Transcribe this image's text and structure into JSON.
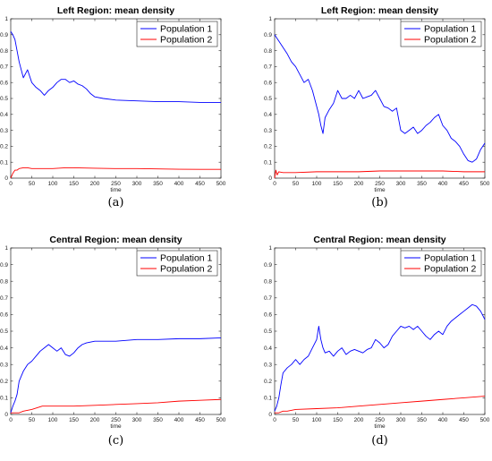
{
  "chart_data": [
    {
      "type": "line",
      "title": "Left Region: mean density",
      "xlabel": "time",
      "ylabel": "",
      "xlim": [
        0,
        500
      ],
      "ylim": [
        0,
        1
      ],
      "xticks": [
        "0",
        "50",
        "100",
        "150",
        "200",
        "250",
        "300",
        "350",
        "400",
        "450",
        "500"
      ],
      "yticks": [
        "0",
        "0.1",
        "0.2",
        "0.3",
        "0.4",
        "0.5",
        "0.6",
        "0.7",
        "0.8",
        "0.9",
        "1"
      ],
      "legend": "top-right",
      "caption": "(a)",
      "series": [
        {
          "name": "Population 1",
          "color": "#0000ff",
          "x": [
            0,
            5,
            10,
            15,
            20,
            25,
            30,
            40,
            50,
            60,
            70,
            80,
            90,
            100,
            110,
            120,
            130,
            140,
            150,
            160,
            170,
            180,
            190,
            200,
            220,
            250,
            300,
            350,
            400,
            450,
            500
          ],
          "y": [
            0.92,
            0.9,
            0.87,
            0.8,
            0.73,
            0.68,
            0.63,
            0.68,
            0.6,
            0.57,
            0.55,
            0.52,
            0.55,
            0.57,
            0.6,
            0.62,
            0.62,
            0.6,
            0.61,
            0.59,
            0.58,
            0.56,
            0.53,
            0.51,
            0.5,
            0.49,
            0.485,
            0.48,
            0.48,
            0.475,
            0.475
          ]
        },
        {
          "name": "Population 2",
          "color": "#ff0000",
          "x": [
            0,
            5,
            10,
            15,
            20,
            30,
            40,
            50,
            70,
            100,
            130,
            150,
            200,
            250,
            300,
            350,
            400,
            450,
            500
          ],
          "y": [
            0.0,
            0.03,
            0.05,
            0.05,
            0.06,
            0.065,
            0.065,
            0.06,
            0.06,
            0.06,
            0.065,
            0.065,
            0.062,
            0.06,
            0.06,
            0.058,
            0.056,
            0.055,
            0.055
          ]
        }
      ]
    },
    {
      "type": "line",
      "title": "Left Region: mean density",
      "xlabel": "time",
      "ylabel": "",
      "xlim": [
        0,
        500
      ],
      "ylim": [
        0,
        1
      ],
      "xticks": [
        "0",
        "50",
        "100",
        "150",
        "200",
        "250",
        "300",
        "350",
        "400",
        "450",
        "500"
      ],
      "yticks": [
        "0",
        "0.1",
        "0.2",
        "0.3",
        "0.4",
        "0.5",
        "0.6",
        "0.7",
        "0.8",
        "0.9",
        "1"
      ],
      "legend": "top-right",
      "caption": "(b)",
      "series": [
        {
          "name": "Population 1",
          "color": "#0000ff",
          "x": [
            0,
            5,
            10,
            20,
            30,
            40,
            50,
            60,
            70,
            80,
            90,
            95,
            100,
            105,
            110,
            115,
            120,
            130,
            140,
            150,
            160,
            170,
            180,
            190,
            200,
            210,
            220,
            230,
            240,
            250,
            260,
            270,
            280,
            290,
            300,
            310,
            320,
            330,
            340,
            350,
            360,
            370,
            380,
            390,
            400,
            410,
            420,
            430,
            440,
            450,
            460,
            470,
            480,
            490,
            500
          ],
          "y": [
            0.9,
            0.88,
            0.86,
            0.82,
            0.78,
            0.73,
            0.7,
            0.65,
            0.6,
            0.62,
            0.55,
            0.5,
            0.45,
            0.4,
            0.33,
            0.28,
            0.38,
            0.43,
            0.47,
            0.55,
            0.5,
            0.5,
            0.52,
            0.5,
            0.55,
            0.5,
            0.51,
            0.52,
            0.55,
            0.5,
            0.45,
            0.44,
            0.42,
            0.44,
            0.3,
            0.28,
            0.3,
            0.32,
            0.28,
            0.3,
            0.33,
            0.35,
            0.38,
            0.4,
            0.33,
            0.3,
            0.25,
            0.23,
            0.2,
            0.15,
            0.11,
            0.1,
            0.12,
            0.18,
            0.22
          ]
        },
        {
          "name": "Population 2",
          "color": "#ff0000",
          "x": [
            0,
            3,
            6,
            10,
            20,
            50,
            100,
            150,
            200,
            250,
            300,
            350,
            400,
            450,
            500
          ],
          "y": [
            0.0,
            0.05,
            0.02,
            0.04,
            0.035,
            0.035,
            0.04,
            0.04,
            0.04,
            0.045,
            0.045,
            0.045,
            0.045,
            0.04,
            0.04
          ]
        }
      ]
    },
    {
      "type": "line",
      "title": "Central Region: mean density",
      "xlabel": "time",
      "ylabel": "",
      "xlim": [
        0,
        500
      ],
      "ylim": [
        0,
        1
      ],
      "xticks": [
        "0",
        "50",
        "100",
        "150",
        "200",
        "250",
        "300",
        "350",
        "400",
        "450",
        "500"
      ],
      "yticks": [
        "0",
        "0.1",
        "0.2",
        "0.3",
        "0.4",
        "0.5",
        "0.6",
        "0.7",
        "0.8",
        "0.9",
        "1"
      ],
      "legend": "top-right",
      "caption": "(c)",
      "series": [
        {
          "name": "Population 1",
          "color": "#0000ff",
          "x": [
            0,
            5,
            10,
            15,
            20,
            30,
            40,
            50,
            60,
            70,
            80,
            90,
            100,
            110,
            120,
            130,
            140,
            150,
            160,
            170,
            180,
            200,
            250,
            300,
            350,
            400,
            450,
            500
          ],
          "y": [
            0.01,
            0.05,
            0.08,
            0.12,
            0.2,
            0.26,
            0.3,
            0.32,
            0.35,
            0.38,
            0.4,
            0.42,
            0.4,
            0.38,
            0.4,
            0.36,
            0.35,
            0.37,
            0.4,
            0.42,
            0.43,
            0.44,
            0.44,
            0.45,
            0.45,
            0.455,
            0.455,
            0.46
          ]
        },
        {
          "name": "Population 2",
          "color": "#ff0000",
          "x": [
            0,
            10,
            20,
            30,
            50,
            75,
            100,
            150,
            200,
            250,
            300,
            350,
            400,
            450,
            500
          ],
          "y": [
            0.01,
            0.01,
            0.01,
            0.02,
            0.03,
            0.05,
            0.05,
            0.05,
            0.055,
            0.06,
            0.065,
            0.07,
            0.08,
            0.085,
            0.09
          ]
        }
      ]
    },
    {
      "type": "line",
      "title": "Central Region: mean density",
      "xlabel": "time",
      "ylabel": "",
      "xlim": [
        0,
        500
      ],
      "ylim": [
        0,
        1
      ],
      "xticks": [
        "0",
        "50",
        "100",
        "150",
        "200",
        "250",
        "300",
        "350",
        "400",
        "450",
        "500"
      ],
      "yticks": [
        "0",
        "0.1",
        "0.2",
        "0.3",
        "0.4",
        "0.5",
        "0.6",
        "0.7",
        "0.8",
        "0.9",
        "1"
      ],
      "legend": "top-right",
      "caption": "(d)",
      "series": [
        {
          "name": "Population 1",
          "color": "#0000ff",
          "x": [
            0,
            5,
            10,
            15,
            20,
            30,
            40,
            50,
            60,
            70,
            80,
            90,
            100,
            105,
            110,
            115,
            120,
            130,
            140,
            150,
            160,
            170,
            180,
            190,
            200,
            210,
            220,
            230,
            240,
            250,
            260,
            270,
            280,
            290,
            300,
            310,
            320,
            330,
            340,
            350,
            360,
            370,
            380,
            390,
            400,
            410,
            420,
            430,
            440,
            450,
            460,
            470,
            480,
            490,
            500
          ],
          "y": [
            0.02,
            0.05,
            0.1,
            0.18,
            0.25,
            0.28,
            0.3,
            0.33,
            0.3,
            0.33,
            0.35,
            0.4,
            0.45,
            0.53,
            0.45,
            0.4,
            0.37,
            0.38,
            0.35,
            0.38,
            0.4,
            0.36,
            0.38,
            0.39,
            0.38,
            0.37,
            0.39,
            0.4,
            0.45,
            0.43,
            0.4,
            0.42,
            0.47,
            0.5,
            0.53,
            0.52,
            0.53,
            0.51,
            0.53,
            0.5,
            0.47,
            0.45,
            0.48,
            0.5,
            0.48,
            0.53,
            0.56,
            0.58,
            0.6,
            0.62,
            0.64,
            0.66,
            0.65,
            0.62,
            0.57
          ]
        },
        {
          "name": "Population 2",
          "color": "#ff0000",
          "x": [
            0,
            10,
            20,
            30,
            50,
            100,
            150,
            200,
            250,
            300,
            350,
            400,
            450,
            500
          ],
          "y": [
            0.01,
            0.01,
            0.02,
            0.02,
            0.03,
            0.035,
            0.04,
            0.05,
            0.06,
            0.07,
            0.08,
            0.09,
            0.1,
            0.11
          ]
        }
      ]
    }
  ]
}
